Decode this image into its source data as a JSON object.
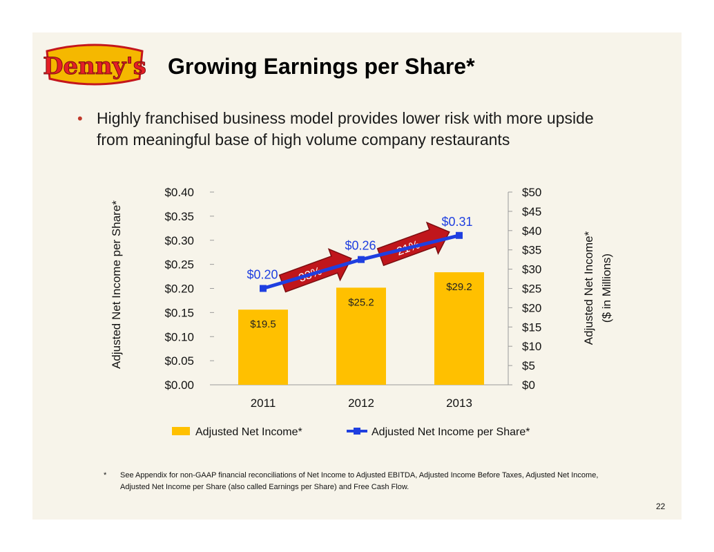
{
  "header": {
    "logo_text": "Denny's",
    "title": "Growing Earnings per Share*"
  },
  "bullet": {
    "text": "Highly franchised business model provides lower risk with more upside from meaningful base of high volume company restaurants"
  },
  "chart_data": {
    "type": "bar",
    "categories": [
      "2011",
      "2012",
      "2013"
    ],
    "series": [
      {
        "name": "Adjusted Net Income*",
        "type": "bar",
        "axis": "right",
        "values": [
          19.5,
          25.2,
          29.2
        ],
        "labels": [
          "$19.5",
          "$25.2",
          "$29.2"
        ],
        "color": "#ffc000"
      },
      {
        "name": "Adjusted Net Income per Share*",
        "type": "line",
        "axis": "left",
        "values": [
          0.2,
          0.26,
          0.31
        ],
        "labels": [
          "$0.20",
          "$0.26",
          "$0.31"
        ],
        "color": "#1f3fe0"
      }
    ],
    "ylabel_left": "Adjusted Net Income per Share*",
    "ylabel_right_1": "Adjusted Net Income*",
    "ylabel_right_2": "($ in Millions)",
    "ylim_left": [
      0,
      0.4
    ],
    "ylim_right": [
      0,
      50
    ],
    "yticks_left": [
      "$0.00",
      "$0.05",
      "$0.10",
      "$0.15",
      "$0.20",
      "$0.25",
      "$0.30",
      "$0.35",
      "$0.40"
    ],
    "yticks_right": [
      "$0",
      "$5",
      "$10",
      "$15",
      "$20",
      "$25",
      "$30",
      "$35",
      "$40",
      "$45",
      "$50"
    ],
    "growth_annotations": [
      "33%",
      "21%"
    ],
    "legend_position": "bottom",
    "grid": false
  },
  "footnote": {
    "star": "*",
    "text": "See Appendix for non-GAAP financial reconciliations of Net Income to Adjusted EBITDA, Adjusted Income Before Taxes, Adjusted Net Income, Adjusted Net Income per Share (also called Earnings per Share) and Free Cash Flow."
  },
  "page_number": "22",
  "colors": {
    "accent_red": "#c0392b",
    "bar_yellow": "#ffc000",
    "line_blue": "#1f3fe0"
  }
}
